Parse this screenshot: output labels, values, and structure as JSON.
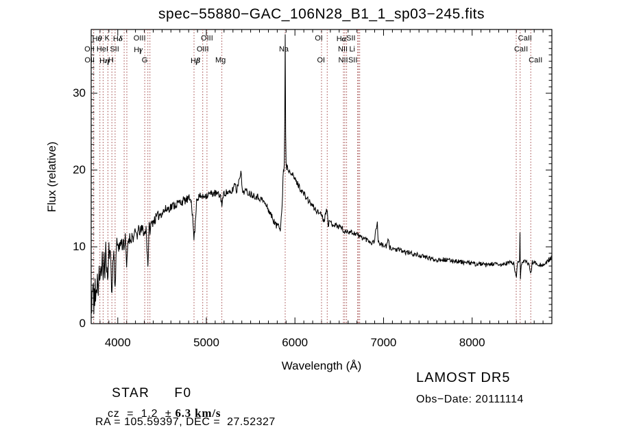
{
  "title": "spec−55880−GAC_106N28_B1_1_sp03−245.fits",
  "annotations": {
    "class_label": "STAR",
    "subclass": "F0",
    "cz_prefix": "cz  =  1.2  ±",
    "cz_value": "6.3 km/s",
    "radec": "RA = 105.59397, DEC =  27.52327",
    "survey": "LAMOST DR5",
    "obs_date": "Obs−Date: 20111114"
  },
  "chart_data": {
    "type": "line",
    "title": "spec−55880−GAC_106N28_B1_1_sp03−245.fits",
    "xlabel": "Wavelength (Å)",
    "ylabel": "Flux (relative)",
    "xlim": [
      3700,
      8900
    ],
    "ylim": [
      0,
      38.3
    ],
    "xticks": [
      4000,
      5000,
      6000,
      7000,
      8000
    ],
    "yticks": [
      0,
      10,
      20,
      30
    ],
    "x_minor_interval": 100,
    "grid": false,
    "legend": "none",
    "trace_color": "#000000",
    "marker_color": "#9e4040",
    "spectral_lines": [
      {
        "label": "Hθ",
        "wavelength": 3798,
        "row": 1,
        "dx": -4
      },
      {
        "label": "K",
        "wavelength": 3934,
        "row": 1,
        "dx": -7
      },
      {
        "label": "Hδ",
        "wavelength": 4102,
        "row": 1,
        "dx": -13
      },
      {
        "label": "OIII",
        "wavelength": 4363,
        "row": 1,
        "dx": -15
      },
      {
        "label": "OIII",
        "wavelength": 5007,
        "row": 1,
        "dx": 0
      },
      {
        "label": "OI",
        "wavelength": 6300,
        "row": 1,
        "dx": -4
      },
      {
        "label": "Hα",
        "wavelength": 6563,
        "row": 1,
        "dx": -5
      },
      {
        "label": "SII",
        "wavelength": 6717,
        "row": 1,
        "dx": -11
      },
      {
        "label": "CaII",
        "wavelength": 8542,
        "row": 1,
        "dx": 7
      },
      {
        "label": "OII",
        "wavelength": 3727,
        "row": 2,
        "dx": -6
      },
      {
        "label": "HeI",
        "wavelength": 3889,
        "row": 2,
        "dx": -8
      },
      {
        "label": "SII",
        "wavelength": 4072,
        "row": 2,
        "dx": -14
      },
      {
        "label": "Hγ",
        "wavelength": 4340,
        "row": 2,
        "dx": -14
      },
      {
        "label": "OIII",
        "wavelength": 4959,
        "row": 2,
        "dx": 0
      },
      {
        "label": "Na",
        "wavelength": 5890,
        "row": 2,
        "dx": -2
      },
      {
        "label": "NII",
        "wavelength": 6548,
        "row": 2,
        "dx": -1
      },
      {
        "label": "Li",
        "wavelength": 6708,
        "row": 2,
        "dx": -8
      },
      {
        "label": "CaII",
        "wavelength": 8498,
        "row": 2,
        "dx": 7
      },
      {
        "label": "OII",
        "wavelength": 3729,
        "row": 3,
        "dx": -6
      },
      {
        "label": "Hη",
        "wavelength": 3835,
        "row": 3,
        "dx": 2
      },
      {
        "label": "H",
        "wavelength": 3970,
        "row": 3,
        "dx": -6
      },
      {
        "label": "G",
        "wavelength": 4304,
        "row": 3,
        "dx": 0
      },
      {
        "label": "Hβ",
        "wavelength": 4861,
        "row": 3,
        "dx": 2
      },
      {
        "label": "Mg",
        "wavelength": 5175,
        "row": 3,
        "dx": -2
      },
      {
        "label": "OI",
        "wavelength": 6364,
        "row": 3,
        "dx": -9
      },
      {
        "label": "NII",
        "wavelength": 6583,
        "row": 3,
        "dx": -5
      },
      {
        "label": "SII",
        "wavelength": 6731,
        "row": 3,
        "dx": -10
      },
      {
        "label": "CaII",
        "wavelength": 8662,
        "row": 3,
        "dx": 7
      }
    ],
    "series": [
      {
        "name": "spectrum",
        "anchors": [
          [
            3700,
            3.5
          ],
          [
            3706,
            0.8
          ],
          [
            3712,
            5.5
          ],
          [
            3718,
            2.5
          ],
          [
            3724,
            6.5
          ],
          [
            3728,
            1.2
          ],
          [
            3734,
            5.0
          ],
          [
            3740,
            2.0
          ],
          [
            3746,
            6.8
          ],
          [
            3752,
            1.0
          ],
          [
            3758,
            5.5
          ],
          [
            3764,
            3.0
          ],
          [
            3772,
            7.0
          ],
          [
            3780,
            4.5
          ],
          [
            3790,
            7.8
          ],
          [
            3798,
            4.8
          ],
          [
            3806,
            8.2
          ],
          [
            3815,
            6.0
          ],
          [
            3825,
            8.5
          ],
          [
            3835,
            5.0
          ],
          [
            3845,
            9.0
          ],
          [
            3855,
            7.0
          ],
          [
            3865,
            9.5
          ],
          [
            3875,
            7.5
          ],
          [
            3889,
            5.5
          ],
          [
            3900,
            9.8
          ],
          [
            3912,
            8.5
          ],
          [
            3922,
            9.5
          ],
          [
            3934,
            2.8
          ],
          [
            3944,
            8.0
          ],
          [
            3955,
            9.5
          ],
          [
            3970,
            4.5
          ],
          [
            3980,
            9.0
          ],
          [
            3990,
            10.2
          ],
          [
            4005,
            10.5
          ],
          [
            4020,
            9.8
          ],
          [
            4035,
            10.8
          ],
          [
            4050,
            10.2
          ],
          [
            4065,
            10.8
          ],
          [
            4072,
            10.0
          ],
          [
            4085,
            11.0
          ],
          [
            4102,
            7.0
          ],
          [
            4115,
            10.8
          ],
          [
            4130,
            11.2
          ],
          [
            4145,
            11.0
          ],
          [
            4160,
            11.4
          ],
          [
            4180,
            11.2
          ],
          [
            4200,
            11.8
          ],
          [
            4220,
            11.6
          ],
          [
            4240,
            12.2
          ],
          [
            4260,
            12.0
          ],
          [
            4280,
            12.4
          ],
          [
            4304,
            11.6
          ],
          [
            4320,
            12.4
          ],
          [
            4340,
            7.6
          ],
          [
            4355,
            12.6
          ],
          [
            4363,
            12.2
          ],
          [
            4380,
            13.0
          ],
          [
            4400,
            13.4
          ],
          [
            4430,
            13.7
          ],
          [
            4460,
            14.1
          ],
          [
            4500,
            14.5
          ],
          [
            4550,
            14.9
          ],
          [
            4600,
            15.2
          ],
          [
            4650,
            15.5
          ],
          [
            4700,
            15.8
          ],
          [
            4750,
            16.0
          ],
          [
            4800,
            16.2
          ],
          [
            4830,
            16.3
          ],
          [
            4861,
            11.0
          ],
          [
            4875,
            13.0
          ],
          [
            4890,
            16.3
          ],
          [
            4920,
            16.5
          ],
          [
            4950,
            16.6
          ],
          [
            4959,
            16.4
          ],
          [
            4980,
            16.8
          ],
          [
            5007,
            16.7
          ],
          [
            5040,
            16.9
          ],
          [
            5080,
            17.0
          ],
          [
            5120,
            16.9
          ],
          [
            5160,
            16.6
          ],
          [
            5175,
            15.6
          ],
          [
            5200,
            17.0
          ],
          [
            5240,
            17.1
          ],
          [
            5280,
            16.9
          ],
          [
            5325,
            18.4
          ],
          [
            5340,
            17.2
          ],
          [
            5390,
            20.0
          ],
          [
            5405,
            17.2
          ],
          [
            5440,
            17.3
          ],
          [
            5480,
            17.0
          ],
          [
            5520,
            16.8
          ],
          [
            5560,
            16.6
          ],
          [
            5600,
            16.4
          ],
          [
            5640,
            16.0
          ],
          [
            5680,
            15.3
          ],
          [
            5720,
            14.4
          ],
          [
            5760,
            13.4
          ],
          [
            5790,
            12.7
          ],
          [
            5815,
            13.1
          ],
          [
            5835,
            12.4
          ],
          [
            5850,
            14.5
          ],
          [
            5862,
            17.0
          ],
          [
            5868,
            21.0
          ],
          [
            5872,
            18.5
          ],
          [
            5878,
            20.5
          ],
          [
            5883,
            22.0
          ],
          [
            5890,
            38.0
          ],
          [
            5896,
            22.0
          ],
          [
            5905,
            20.3
          ],
          [
            5915,
            20.8
          ],
          [
            5925,
            19.8
          ],
          [
            5940,
            20.2
          ],
          [
            5960,
            19.6
          ],
          [
            5980,
            19.2
          ],
          [
            6000,
            18.8
          ],
          [
            6030,
            18.2
          ],
          [
            6060,
            17.6
          ],
          [
            6100,
            16.9
          ],
          [
            6140,
            16.2
          ],
          [
            6180,
            15.6
          ],
          [
            6220,
            15.0
          ],
          [
            6260,
            14.5
          ],
          [
            6300,
            14.4
          ],
          [
            6310,
            13.8
          ],
          [
            6330,
            13.5
          ],
          [
            6364,
            15.2
          ],
          [
            6375,
            13.0
          ],
          [
            6400,
            13.2
          ],
          [
            6440,
            12.9
          ],
          [
            6480,
            12.7
          ],
          [
            6520,
            12.6
          ],
          [
            6545,
            12.2
          ],
          [
            6563,
            11.8
          ],
          [
            6585,
            12.1
          ],
          [
            6620,
            12.0
          ],
          [
            6660,
            11.8
          ],
          [
            6700,
            11.7
          ],
          [
            6720,
            11.4
          ],
          [
            6760,
            11.2
          ],
          [
            6800,
            11.0
          ],
          [
            6840,
            10.8
          ],
          [
            6870,
            10.5
          ],
          [
            6895,
            10.8
          ],
          [
            6930,
            13.3
          ],
          [
            6940,
            10.6
          ],
          [
            6970,
            10.3
          ],
          [
            7000,
            10.2
          ],
          [
            7030,
            10.0
          ],
          [
            7055,
            10.9
          ],
          [
            7070,
            9.9
          ],
          [
            7100,
            9.8
          ],
          [
            7150,
            9.6
          ],
          [
            7200,
            9.5
          ],
          [
            7250,
            9.3
          ],
          [
            7300,
            9.2
          ],
          [
            7350,
            9.0
          ],
          [
            7400,
            8.9
          ],
          [
            7450,
            8.7
          ],
          [
            7500,
            8.6
          ],
          [
            7550,
            8.4
          ],
          [
            7600,
            8.3
          ],
          [
            7650,
            8.4
          ],
          [
            7700,
            8.3
          ],
          [
            7750,
            8.2
          ],
          [
            7800,
            8.2
          ],
          [
            7850,
            8.1
          ],
          [
            7900,
            8.0
          ],
          [
            7950,
            7.9
          ],
          [
            8000,
            7.9
          ],
          [
            8050,
            7.7
          ],
          [
            8100,
            7.8
          ],
          [
            8150,
            7.6
          ],
          [
            8200,
            7.7
          ],
          [
            8250,
            7.8
          ],
          [
            8300,
            7.6
          ],
          [
            8350,
            7.7
          ],
          [
            8400,
            7.9
          ],
          [
            8440,
            8.0
          ],
          [
            8470,
            7.8
          ],
          [
            8498,
            5.9
          ],
          [
            8510,
            7.8
          ],
          [
            8525,
            8.0
          ],
          [
            8535,
            8.3
          ],
          [
            8540,
            11.9
          ],
          [
            8545,
            6.0
          ],
          [
            8555,
            7.9
          ],
          [
            8580,
            8.1
          ],
          [
            8610,
            8.0
          ],
          [
            8640,
            7.8
          ],
          [
            8662,
            6.5
          ],
          [
            8680,
            8.0
          ],
          [
            8720,
            7.9
          ],
          [
            8760,
            7.7
          ],
          [
            8800,
            7.6
          ],
          [
            8840,
            7.9
          ],
          [
            8870,
            8.4
          ],
          [
            8900,
            8.6
          ]
        ]
      }
    ],
    "noise": {
      "seed": 11,
      "step": 5,
      "amplitudes": [
        [
          3700,
          1.5
        ],
        [
          3900,
          1.15
        ],
        [
          4100,
          0.85
        ],
        [
          4500,
          0.65
        ],
        [
          5000,
          0.5
        ],
        [
          5600,
          0.45
        ],
        [
          6300,
          0.4
        ],
        [
          7000,
          0.33
        ],
        [
          8000,
          0.28
        ],
        [
          8900,
          0.3
        ]
      ]
    }
  }
}
